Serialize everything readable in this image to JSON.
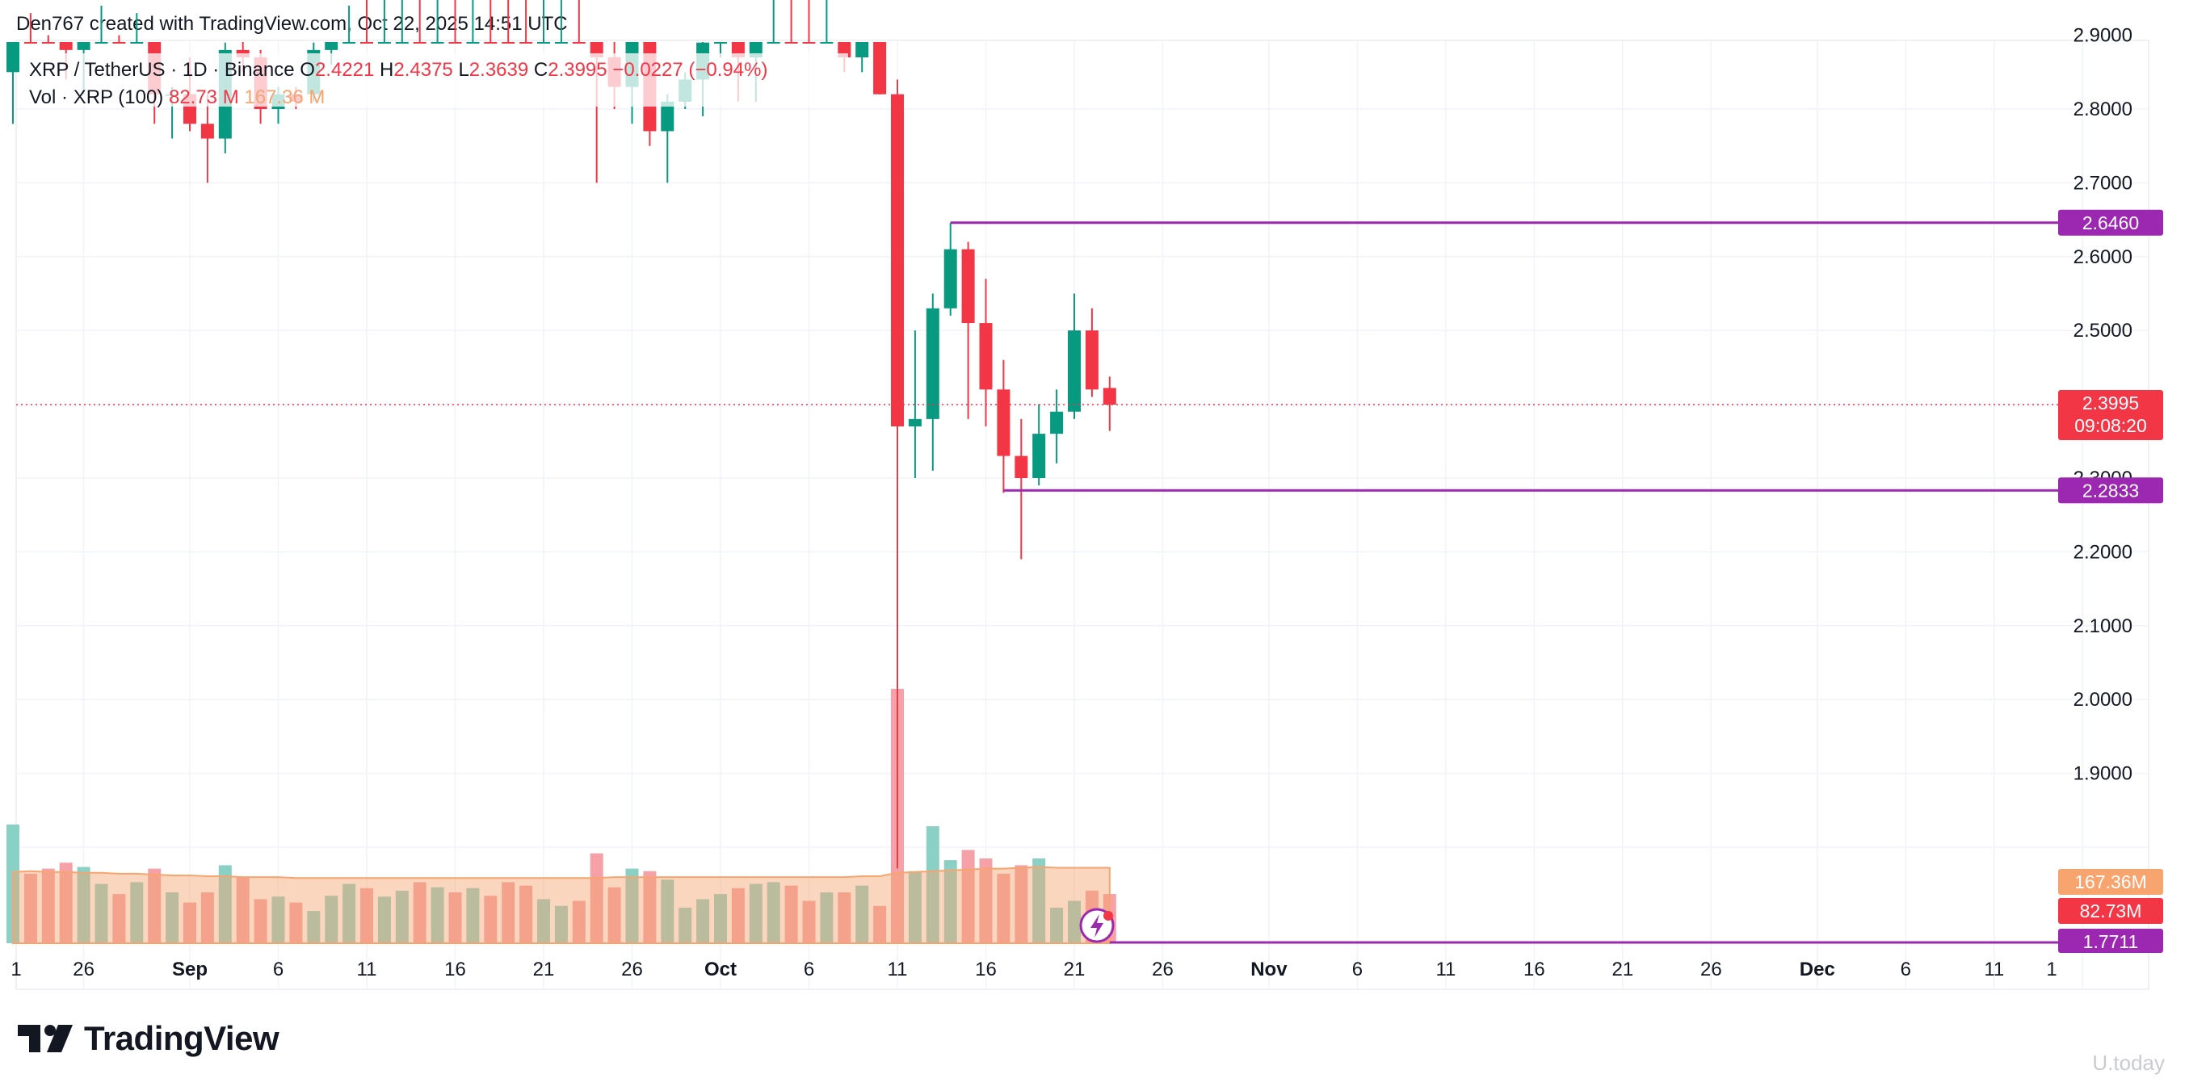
{
  "header": {
    "credit": "Den767 created with TradingView.com, Oct 22, 2025 14:51 UTC"
  },
  "legend": {
    "symbol": "XRP / TetherUS · 1D · Binance",
    "o_label": "O",
    "o_value": "2.4221",
    "h_label": "H",
    "h_value": "2.4375",
    "l_label": "L",
    "l_value": "2.3639",
    "c_label": "C",
    "c_value": "2.3995",
    "change": "−0.0227 (−0.94%)",
    "vol_label": "Vol · XRP (100)",
    "vol_value": "82.73 M",
    "vol_ma_value": "167.36 M"
  },
  "price_axis": {
    "ticks": [
      "2.9000",
      "2.8000",
      "2.7000",
      "2.6000",
      "2.5000",
      "2.3000",
      "2.2000",
      "2.1000",
      "2.0000",
      "1.9000"
    ]
  },
  "time_axis": {
    "ticks": [
      {
        "label": "1",
        "bold": false
      },
      {
        "label": "26",
        "bold": false
      },
      {
        "label": "Sep",
        "bold": true
      },
      {
        "label": "6",
        "bold": false
      },
      {
        "label": "11",
        "bold": false
      },
      {
        "label": "16",
        "bold": false
      },
      {
        "label": "21",
        "bold": false
      },
      {
        "label": "26",
        "bold": false
      },
      {
        "label": "Oct",
        "bold": true
      },
      {
        "label": "6",
        "bold": false
      },
      {
        "label": "11",
        "bold": false
      },
      {
        "label": "16",
        "bold": false
      },
      {
        "label": "21",
        "bold": false
      },
      {
        "label": "26",
        "bold": false
      },
      {
        "label": "Nov",
        "bold": true
      },
      {
        "label": "6",
        "bold": false
      },
      {
        "label": "11",
        "bold": false
      },
      {
        "label": "16",
        "bold": false
      },
      {
        "label": "21",
        "bold": false
      },
      {
        "label": "26",
        "bold": false
      },
      {
        "label": "Dec",
        "bold": true
      },
      {
        "label": "6",
        "bold": false
      },
      {
        "label": "11",
        "bold": false
      },
      {
        "label": "1",
        "bold": false
      }
    ]
  },
  "horizontal_lines": [
    {
      "price": 2.646,
      "label": "2.6460",
      "start_index": 53
    },
    {
      "price": 2.2833,
      "label": "2.2833",
      "start_index": 56
    },
    {
      "price": 1.7711,
      "label": "1.7711",
      "start_index": 62
    }
  ],
  "price_labels": {
    "last_price": "2.3995",
    "countdown": "09:08:20",
    "vol_ma": "167.36M",
    "vol": "82.73M"
  },
  "colors": {
    "up": "#089981",
    "down": "#f23645",
    "line": "#9c27b0",
    "vol_up": "#8ad0c4",
    "vol_down": "#f5a1a7",
    "vol_ma": "#f7a46f"
  },
  "branding": {
    "logo_text": "TradingView",
    "watermark": "U.today"
  },
  "chart_data": {
    "type": "candlestick",
    "title": "XRP / TetherUS · 1D · Binance",
    "start_date": "2025-08-22",
    "ylim": [
      1.77,
      3.0
    ],
    "candles": [
      {
        "o": 2.85,
        "h": 3.02,
        "l": 2.78,
        "c": 3.01
      },
      {
        "o": 3.01,
        "h": 3.05,
        "l": 2.93,
        "c": 2.99
      },
      {
        "o": 2.99,
        "h": 3.04,
        "l": 2.9,
        "c": 2.96
      },
      {
        "o": 2.96,
        "h": 3.0,
        "l": 2.84,
        "c": 2.88
      },
      {
        "o": 2.88,
        "h": 3.0,
        "l": 2.82,
        "c": 2.99
      },
      {
        "o": 2.99,
        "h": 3.06,
        "l": 2.94,
        "c": 3.0
      },
      {
        "o": 3.0,
        "h": 3.02,
        "l": 2.9,
        "c": 2.96
      },
      {
        "o": 2.96,
        "h": 3.04,
        "l": 2.93,
        "c": 2.98
      },
      {
        "o": 2.98,
        "h": 3.02,
        "l": 2.78,
        "c": 2.82
      },
      {
        "o": 2.82,
        "h": 2.83,
        "l": 2.76,
        "c": 2.82
      },
      {
        "o": 2.82,
        "h": 2.87,
        "l": 2.77,
        "c": 2.78
      },
      {
        "o": 2.78,
        "h": 2.82,
        "l": 2.7,
        "c": 2.76
      },
      {
        "o": 2.76,
        "h": 2.89,
        "l": 2.74,
        "c": 2.88
      },
      {
        "o": 2.88,
        "h": 2.91,
        "l": 2.85,
        "c": 2.87
      },
      {
        "o": 2.87,
        "h": 2.88,
        "l": 2.78,
        "c": 2.8
      },
      {
        "o": 2.8,
        "h": 2.83,
        "l": 2.78,
        "c": 2.82
      },
      {
        "o": 2.82,
        "h": 2.83,
        "l": 2.8,
        "c": 2.81
      },
      {
        "o": 2.82,
        "h": 2.89,
        "l": 2.81,
        "c": 2.88
      },
      {
        "o": 2.88,
        "h": 2.97,
        "l": 2.86,
        "c": 2.96
      },
      {
        "o": 2.96,
        "h": 3.03,
        "l": 2.94,
        "c": 3.01
      },
      {
        "o": 3.01,
        "h": 3.03,
        "l": 2.95,
        "c": 2.98
      },
      {
        "o": 2.98,
        "h": 3.04,
        "l": 2.95,
        "c": 3.02
      },
      {
        "o": 3.02,
        "h": 3.05,
        "l": 2.98,
        "c": 3.04
      },
      {
        "o": 3.04,
        "h": 3.06,
        "l": 3.0,
        "c": 3.03
      },
      {
        "o": 3.03,
        "h": 3.07,
        "l": 2.99,
        "c": 3.06
      },
      {
        "o": 3.06,
        "h": 3.1,
        "l": 3.02,
        "c": 3.05
      },
      {
        "o": 3.05,
        "h": 3.08,
        "l": 3.01,
        "c": 3.07
      },
      {
        "o": 3.07,
        "h": 3.09,
        "l": 3.04,
        "c": 3.06
      },
      {
        "o": 3.06,
        "h": 3.1,
        "l": 3.0,
        "c": 3.03
      },
      {
        "o": 3.03,
        "h": 3.06,
        "l": 2.98,
        "c": 3.01
      },
      {
        "o": 3.01,
        "h": 3.05,
        "l": 2.97,
        "c": 3.04
      },
      {
        "o": 3.04,
        "h": 3.08,
        "l": 3.02,
        "c": 3.05
      },
      {
        "o": 3.05,
        "h": 3.08,
        "l": 2.98,
        "c": 3.02
      },
      {
        "o": 3.02,
        "h": 3.03,
        "l": 2.7,
        "c": 2.87
      },
      {
        "o": 2.87,
        "h": 2.93,
        "l": 2.8,
        "c": 2.83
      },
      {
        "o": 2.83,
        "h": 2.97,
        "l": 2.78,
        "c": 2.96
      },
      {
        "o": 2.96,
        "h": 2.98,
        "l": 2.75,
        "c": 2.77
      },
      {
        "o": 2.77,
        "h": 2.82,
        "l": 2.7,
        "c": 2.81
      },
      {
        "o": 2.81,
        "h": 2.85,
        "l": 2.8,
        "c": 2.84
      },
      {
        "o": 2.84,
        "h": 2.9,
        "l": 2.79,
        "c": 2.89
      },
      {
        "o": 2.89,
        "h": 2.91,
        "l": 2.87,
        "c": 2.9
      },
      {
        "o": 2.9,
        "h": 2.93,
        "l": 2.81,
        "c": 2.87
      },
      {
        "o": 2.87,
        "h": 2.99,
        "l": 2.81,
        "c": 2.97
      },
      {
        "o": 2.97,
        "h": 3.06,
        "l": 2.95,
        "c": 3.04
      },
      {
        "o": 3.04,
        "h": 3.07,
        "l": 3.0,
        "c": 3.02
      },
      {
        "o": 3.02,
        "h": 3.03,
        "l": 2.98,
        "c": 3.0
      },
      {
        "o": 3.0,
        "h": 3.03,
        "l": 2.98,
        "c": 3.02
      },
      {
        "o": 3.02,
        "h": 3.04,
        "l": 2.85,
        "c": 2.87
      },
      {
        "o": 2.87,
        "h": 2.92,
        "l": 2.85,
        "c": 2.9
      },
      {
        "o": 2.9,
        "h": 2.9,
        "l": 2.82,
        "c": 2.82
      },
      {
        "o": 2.82,
        "h": 2.84,
        "l": 1.7711,
        "c": 2.37
      },
      {
        "o": 2.37,
        "h": 2.5,
        "l": 2.3,
        "c": 2.38
      },
      {
        "o": 2.38,
        "h": 2.55,
        "l": 2.31,
        "c": 2.53
      },
      {
        "o": 2.53,
        "h": 2.646,
        "l": 2.52,
        "c": 2.61
      },
      {
        "o": 2.61,
        "h": 2.62,
        "l": 2.38,
        "c": 2.51
      },
      {
        "o": 2.51,
        "h": 2.57,
        "l": 2.37,
        "c": 2.42
      },
      {
        "o": 2.42,
        "h": 2.46,
        "l": 2.28,
        "c": 2.33
      },
      {
        "o": 2.33,
        "h": 2.38,
        "l": 2.19,
        "c": 2.3
      },
      {
        "o": 2.3,
        "h": 2.4,
        "l": 2.29,
        "c": 2.36
      },
      {
        "o": 2.36,
        "h": 2.42,
        "l": 2.32,
        "c": 2.39
      },
      {
        "o": 2.39,
        "h": 2.55,
        "l": 2.38,
        "c": 2.5
      },
      {
        "o": 2.5,
        "h": 2.53,
        "l": 2.41,
        "c": 2.42
      },
      {
        "o": 2.4221,
        "h": 2.4375,
        "l": 2.3639,
        "c": 2.3995
      }
    ],
    "volume": [
      140,
      82,
      88,
      95,
      90,
      70,
      58,
      72,
      88,
      60,
      48,
      60,
      92,
      78,
      52,
      55,
      48,
      38,
      56,
      70,
      65,
      55,
      62,
      72,
      66,
      60,
      65,
      56,
      72,
      68,
      52,
      44,
      50,
      106,
      66,
      88,
      85,
      75,
      42,
      52,
      58,
      65,
      70,
      72,
      68,
      50,
      60,
      60,
      68,
      44,
      300,
      85,
      138,
      98,
      110,
      100,
      82,
      92,
      100,
      42,
      50,
      62,
      58
    ],
    "volume_ma": [
      84,
      85,
      84,
      84,
      83,
      83,
      82,
      82,
      81,
      80,
      80,
      79,
      79,
      78,
      78,
      78,
      77,
      77,
      77,
      77,
      77,
      77,
      77,
      77,
      77,
      77,
      77,
      77,
      77,
      77,
      77,
      77,
      77,
      77,
      78,
      78,
      78,
      78,
      78,
      78,
      78,
      78,
      78,
      78,
      78,
      78,
      78,
      78,
      79,
      79,
      83,
      84,
      85,
      86,
      87,
      88,
      88,
      89,
      90,
      89,
      89,
      89,
      89
    ]
  }
}
